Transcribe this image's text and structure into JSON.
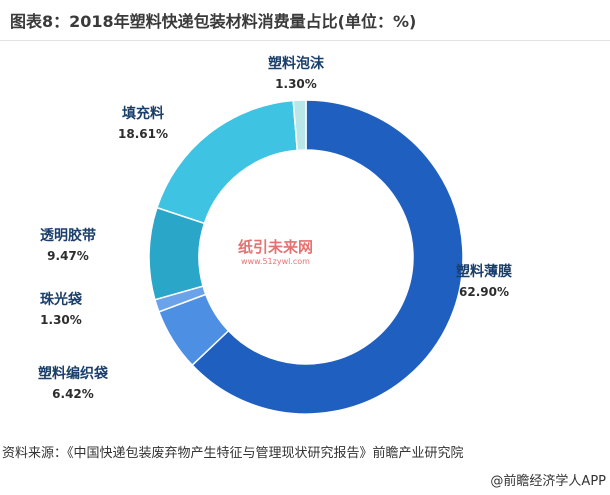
{
  "title": "图表8：2018年塑料快递包装材料消费量占比(单位：%)",
  "chart_data": {
    "type": "pie",
    "donut": true,
    "start_angle_deg": 0,
    "direction": "clockwise",
    "series": [
      {
        "name": "塑料薄膜",
        "value": 62.9,
        "label": "62.90%",
        "color": "#1f5fbf"
      },
      {
        "name": "塑料编织袋",
        "value": 6.42,
        "label": "6.42%",
        "color": "#4c8fe3"
      },
      {
        "name": "珠光袋",
        "value": 1.3,
        "label": "1.30%",
        "color": "#6aa3ea"
      },
      {
        "name": "透明胶带",
        "value": 9.47,
        "label": "9.47%",
        "color": "#2aa6c9"
      },
      {
        "name": "填充料",
        "value": 18.61,
        "label": "18.61%",
        "color": "#3ec3e2"
      },
      {
        "name": "塑料泡沫",
        "value": 1.3,
        "label": "1.30%",
        "color": "#b9e6e8"
      }
    ]
  },
  "watermark": {
    "text": "纸引未来网",
    "url": "www.51zywl.com"
  },
  "source": "资料来源：《中国快递包装废弃物产生特征与管理现状研究报告》前瞻产业研究院",
  "footer": "@前瞻经济学人APP"
}
